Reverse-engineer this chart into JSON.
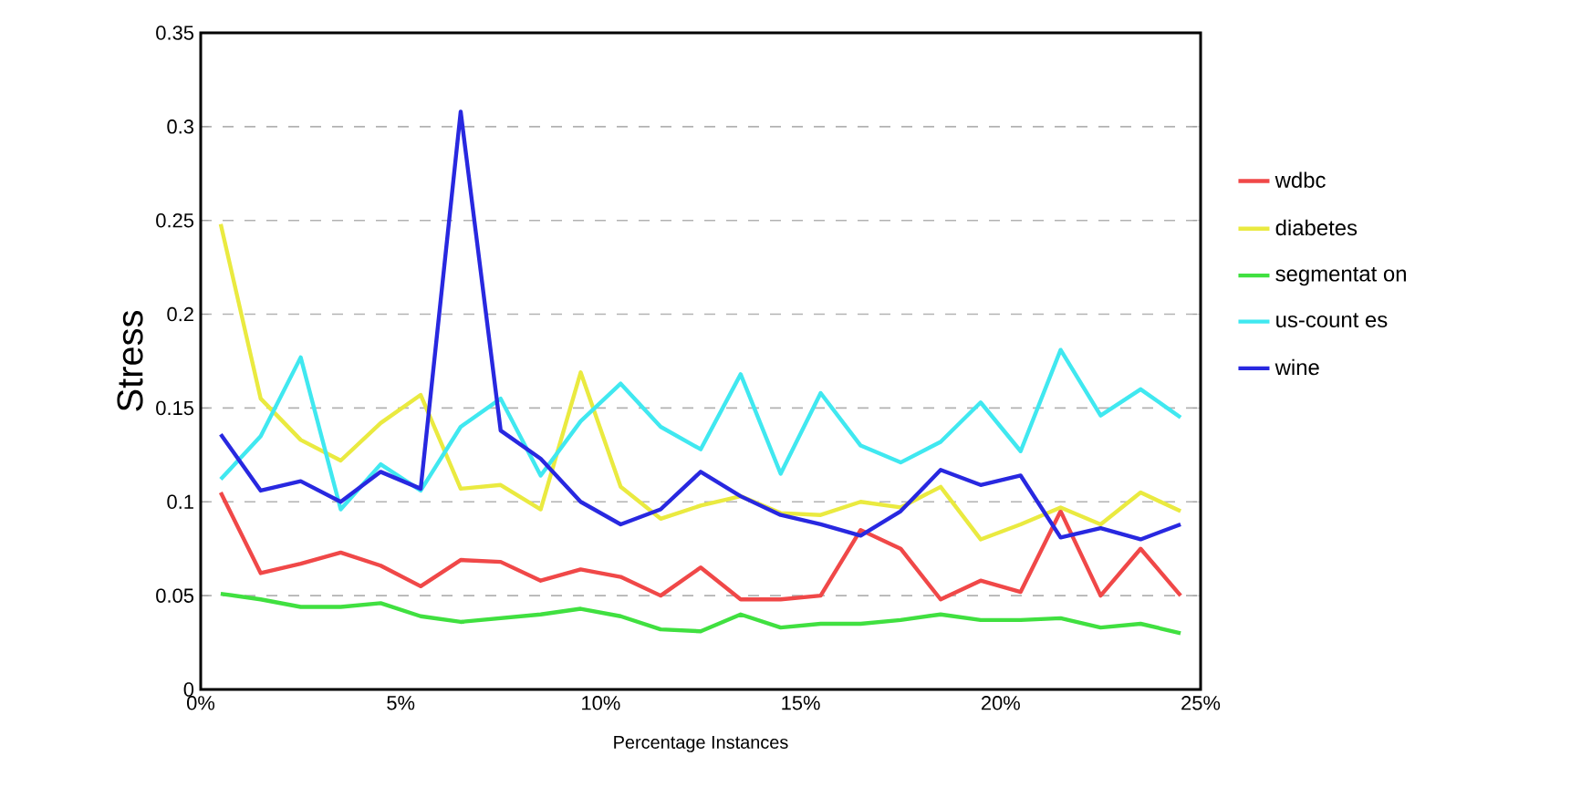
{
  "chart_data": {
    "type": "line",
    "xlabel": "Percentage Instances",
    "ylabel": "Stress",
    "x": [
      0.5,
      1.5,
      2.5,
      3.5,
      4.5,
      5.5,
      6.5,
      7.5,
      8.5,
      9.5,
      10.5,
      11.5,
      12.5,
      13.5,
      14.5,
      15.5,
      16.5,
      17.5,
      18.5,
      19.5,
      20.5,
      21.5,
      22.5,
      23.5,
      24.5
    ],
    "series": [
      {
        "name": "wdbc",
        "color": "#f04848",
        "values": [
          0.105,
          0.062,
          0.067,
          0.073,
          0.066,
          0.055,
          0.069,
          0.068,
          0.058,
          0.064,
          0.06,
          0.05,
          0.065,
          0.048,
          0.048,
          0.05,
          0.085,
          0.075,
          0.048,
          0.058,
          0.052,
          0.095,
          0.05,
          0.075,
          0.05
        ]
      },
      {
        "name": "diabetes",
        "color": "#eaea40",
        "values": [
          0.248,
          0.155,
          0.133,
          0.122,
          0.142,
          0.157,
          0.107,
          0.109,
          0.096,
          0.169,
          0.108,
          0.091,
          0.098,
          0.103,
          0.094,
          0.093,
          0.1,
          0.097,
          0.108,
          0.08,
          0.088,
          0.097,
          0.088,
          0.105,
          0.095
        ]
      },
      {
        "name": "segmentat on",
        "color": "#40e040",
        "values": [
          0.051,
          0.048,
          0.044,
          0.044,
          0.046,
          0.039,
          0.036,
          0.038,
          0.04,
          0.043,
          0.039,
          0.032,
          0.031,
          0.04,
          0.033,
          0.035,
          0.035,
          0.037,
          0.04,
          0.037,
          0.037,
          0.038,
          0.033,
          0.035,
          0.03
        ]
      },
      {
        "name": "us-count es",
        "color": "#40e8f0",
        "values": [
          0.112,
          0.135,
          0.177,
          0.096,
          0.12,
          0.106,
          0.14,
          0.155,
          0.114,
          0.143,
          0.163,
          0.14,
          0.128,
          0.168,
          0.115,
          0.158,
          0.13,
          0.121,
          0.132,
          0.153,
          0.127,
          0.181,
          0.146,
          0.16,
          0.145
        ]
      },
      {
        "name": "wine",
        "color": "#2828e0",
        "values": [
          0.136,
          0.106,
          0.111,
          0.1,
          0.116,
          0.107,
          0.308,
          0.138,
          0.123,
          0.1,
          0.088,
          0.096,
          0.116,
          0.103,
          0.093,
          0.088,
          0.082,
          0.095,
          0.117,
          0.109,
          0.114,
          0.081,
          0.086,
          0.08,
          0.088
        ]
      }
    ],
    "xlim": [
      0,
      25
    ],
    "xticks": [
      {
        "value": 0,
        "label": "0%"
      },
      {
        "value": 5,
        "label": "5%"
      },
      {
        "value": 10,
        "label": "10%"
      },
      {
        "value": 15,
        "label": "15%"
      },
      {
        "value": 20,
        "label": "20%"
      },
      {
        "value": 25,
        "label": "25%"
      }
    ],
    "ylim": [
      0,
      0.35
    ],
    "yticks": [
      0,
      0.05,
      0.1,
      0.15,
      0.2,
      0.25,
      0.3,
      0.35
    ],
    "grid": "y",
    "legend": "right",
    "marker": "none",
    "line_style": "solid"
  }
}
